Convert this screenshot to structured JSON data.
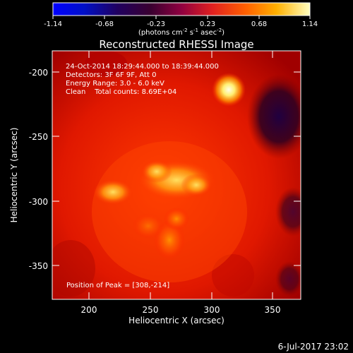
{
  "colorbar": {
    "ticks": [
      "-1.14",
      "-0.68",
      "-0.23",
      "0.23",
      "0.68",
      "1.14"
    ],
    "units_main": "(photons cm",
    "units_sup1": "-2",
    "units_mid": " s",
    "units_sup2": "-1",
    "units_mid2": " asec",
    "units_sup3": "-2",
    "units_end": ")"
  },
  "title": "Reconstructed RHESSI Image",
  "info": {
    "line1": "24-Oct-2014 18:29:44.000 to 18:39:44.000",
    "line2": "Detectors: 3F 6F 9F, Att 0",
    "line3": "Energy Range: 3.0 - 6.0 keV",
    "line4": "Clean    Total counts: 8.69E+04",
    "peak": "Position of Peak = [308,-214]"
  },
  "axes": {
    "xlabel": "Heliocentric X (arcsec)",
    "ylabel": "Heliocentric Y (arcsec)",
    "xticks": [
      "200",
      "250",
      "300",
      "350"
    ],
    "yticks": [
      "-200",
      "-250",
      "-300",
      "-350"
    ]
  },
  "footer": {
    "date": "6-Jul-2017 23:02"
  },
  "colors": {
    "background": "#000000",
    "text": "#ffffff"
  }
}
